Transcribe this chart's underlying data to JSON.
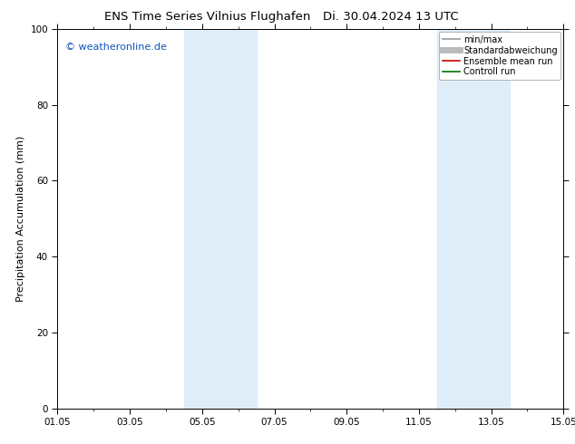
{
  "title": "ENS Time Series Vilnius Flughafen",
  "title2": "Di. 30.04.2024 13 UTC",
  "ylabel": "Precipitation Accumulation (mm)",
  "ylim": [
    0,
    100
  ],
  "yticks": [
    0,
    20,
    40,
    60,
    80,
    100
  ],
  "xlim": [
    0,
    14
  ],
  "xtick_labels": [
    "01.05",
    "03.05",
    "05.05",
    "07.05",
    "09.05",
    "11.05",
    "13.05",
    "15.05"
  ],
  "xtick_positions": [
    0,
    2,
    4,
    6,
    8,
    10,
    12,
    14
  ],
  "shaded_bands": [
    {
      "start": 3.5,
      "end": 5.5,
      "color": "#deedf8"
    },
    {
      "start": 10.5,
      "end": 12.5,
      "color": "#deedf8"
    }
  ],
  "watermark_text": "© weatheronline.de",
  "watermark_color": "#1155bb",
  "legend_entries": [
    {
      "label": "min/max",
      "color": "#999999",
      "lw": 1.2,
      "ls": "-"
    },
    {
      "label": "Standardabweichung",
      "color": "#bbbbbb",
      "lw": 5,
      "ls": "-"
    },
    {
      "label": "Ensemble mean run",
      "color": "#cc0000",
      "lw": 1.2,
      "ls": "-"
    },
    {
      "label": "Controll run",
      "color": "#007700",
      "lw": 1.2,
      "ls": "-"
    }
  ],
  "bg_color": "#ffffff",
  "plot_bg_color": "#ffffff",
  "title_fontsize": 9.5,
  "ylabel_fontsize": 8,
  "tick_fontsize": 7.5,
  "legend_fontsize": 7,
  "watermark_fontsize": 8
}
